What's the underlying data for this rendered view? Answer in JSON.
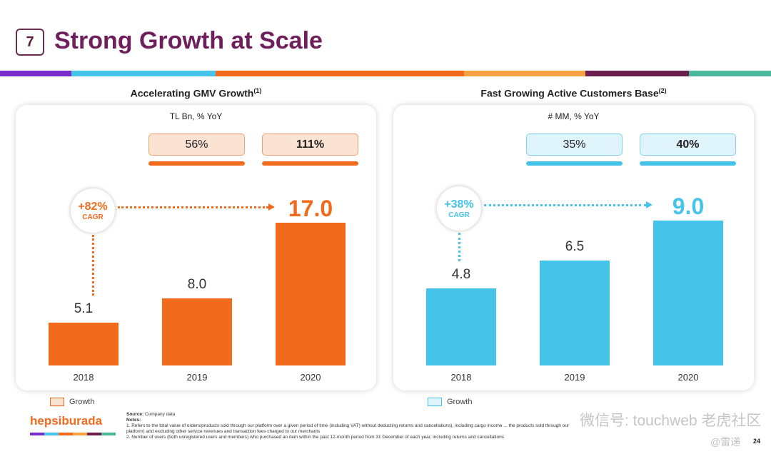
{
  "header": {
    "number": "7",
    "title": "Strong Growth at Scale"
  },
  "colors": {
    "orange": "#f26b1d",
    "blue": "#45c3e8",
    "purple": "#6e1f5c",
    "stripe": [
      "#7b2ccf",
      "#45c3e8",
      "#f26b1d",
      "#f4a340",
      "#6b1f4f",
      "#4bb89a"
    ]
  },
  "chart_data": [
    {
      "type": "bar",
      "title": "Accelerating GMV Growth",
      "title_note": "(1)",
      "subtitle": "TL Bn, % YoY",
      "categories": [
        "2018",
        "2019",
        "2020"
      ],
      "values": [
        5.1,
        8.0,
        17.0
      ],
      "value_labels": [
        "5.1",
        "8.0",
        "17.0"
      ],
      "growth": [
        "56%",
        "111%"
      ],
      "cagr": "+82%",
      "cagr_label": "CAGR",
      "legend": "Growth",
      "color": "#f26b1d"
    },
    {
      "type": "bar",
      "title": "Fast Growing Active Customers Base",
      "title_note": "(2)",
      "subtitle": "# MM, % YoY",
      "categories": [
        "2018",
        "2019",
        "2020"
      ],
      "values": [
        4.8,
        6.5,
        9.0
      ],
      "value_labels": [
        "4.8",
        "6.5",
        "9.0"
      ],
      "growth": [
        "35%",
        "40%"
      ],
      "cagr": "+38%",
      "cagr_label": "CAGR",
      "legend": "Growth",
      "color": "#45c3e8"
    }
  ],
  "footer": {
    "logo": "hepsiburada",
    "source_label": "Source:",
    "source": "Company data",
    "notes_label": "Notes:",
    "note1": "1. Refers to the total value of orders/products sold through our platform over a given period of time (including VAT) without deducting returns and cancellations), including cargo income ... the products sold through our platform) and excluding other service revenues and transaction fees charged to our merchants",
    "note2": "2. Number of users (both unregistered users and members) who purchased an item within the past 12-month period from 31 December of each year, including returns and cancellations",
    "page": "24",
    "watermark": "微信号: touchweb 老虎社区",
    "watermark2": "@雷递"
  }
}
